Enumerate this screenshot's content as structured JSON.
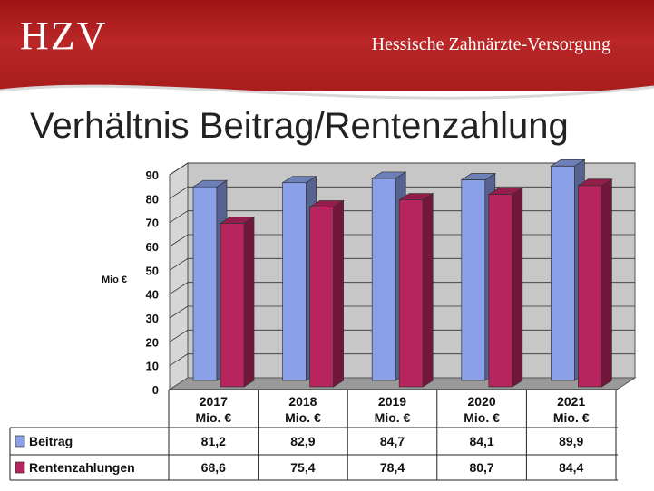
{
  "header": {
    "brand": "HZV",
    "org": "Hessische Zahnärzte-Versorgung"
  },
  "page_title": "Verhältnis Beitrag/Rentenzahlung",
  "colors": {
    "header": "#ac1f1f",
    "beitrag": "#8aa0e8",
    "renten": "#b8245e",
    "wall": "#c7c7c7",
    "floor": "#9a9a9a"
  },
  "chart_data": {
    "type": "bar",
    "title": "",
    "ylabel": "Mio €",
    "xlabel": "",
    "ylim": [
      0,
      90
    ],
    "yticks": [
      0,
      10,
      20,
      30,
      40,
      50,
      60,
      70,
      80,
      90
    ],
    "categories": [
      "2017",
      "2018",
      "2019",
      "2020",
      "2021"
    ],
    "category_unit": "Mio. €",
    "series": [
      {
        "name": "Beitrag",
        "values": [
          81.2,
          82.9,
          84.7,
          84.1,
          89.9
        ],
        "labels": [
          "81,2",
          "82,9",
          "84,7",
          "84,1",
          "89,9"
        ]
      },
      {
        "name": "Rentenzahlungen",
        "values": [
          68.6,
          75.4,
          78.4,
          80.7,
          84.4
        ],
        "labels": [
          "68,6",
          "75,4",
          "78,4",
          "80,7",
          "84,4"
        ]
      }
    ],
    "grid": true,
    "legend": "data-table-below"
  }
}
